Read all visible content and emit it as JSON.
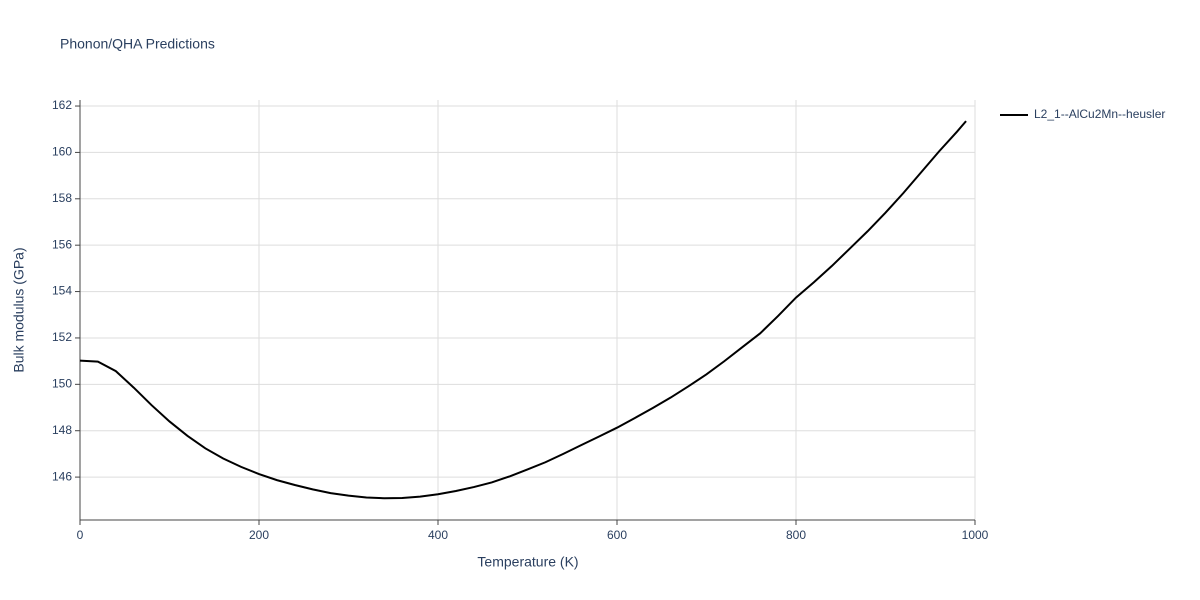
{
  "chart_data": {
    "type": "line",
    "title": "Phonon/QHA Predictions",
    "x_label": "Temperature (K)",
    "y_label": "Bulk modulus (GPa)",
    "x": [
      0,
      20,
      40,
      60,
      80,
      100,
      120,
      140,
      160,
      180,
      200,
      220,
      240,
      260,
      280,
      300,
      320,
      340,
      360,
      380,
      400,
      420,
      440,
      460,
      480,
      500,
      520,
      540,
      560,
      580,
      600,
      620,
      640,
      660,
      680,
      700,
      720,
      740,
      760,
      780,
      800,
      820,
      840,
      860,
      880,
      900,
      920,
      940,
      960,
      980,
      990
    ],
    "series": [
      {
        "name": "L2_1--AlCu2Mn--heusler",
        "color": "#000000",
        "values": [
          151.02,
          150.98,
          150.57,
          149.86,
          149.1,
          148.4,
          147.78,
          147.24,
          146.8,
          146.44,
          146.13,
          145.87,
          145.66,
          145.47,
          145.31,
          145.2,
          145.12,
          145.09,
          145.1,
          145.16,
          145.26,
          145.4,
          145.57,
          145.77,
          146.03,
          146.33,
          146.64,
          147.0,
          147.38,
          147.75,
          148.13,
          148.55,
          148.98,
          149.43,
          149.92,
          150.43,
          151.0,
          151.6,
          152.2,
          152.95,
          153.74,
          154.4,
          155.1,
          155.85,
          156.6,
          157.4,
          158.25,
          159.15,
          160.05,
          160.9,
          161.35
        ]
      }
    ],
    "xlim": [
      0,
      1000
    ],
    "xticks": [
      0,
      200,
      400,
      600,
      800,
      1000
    ],
    "ylim": [
      144.15,
      162.26
    ],
    "yticks": [
      146,
      148,
      150,
      152,
      154,
      156,
      158,
      160,
      162
    ],
    "grid": true,
    "legend": "right"
  }
}
